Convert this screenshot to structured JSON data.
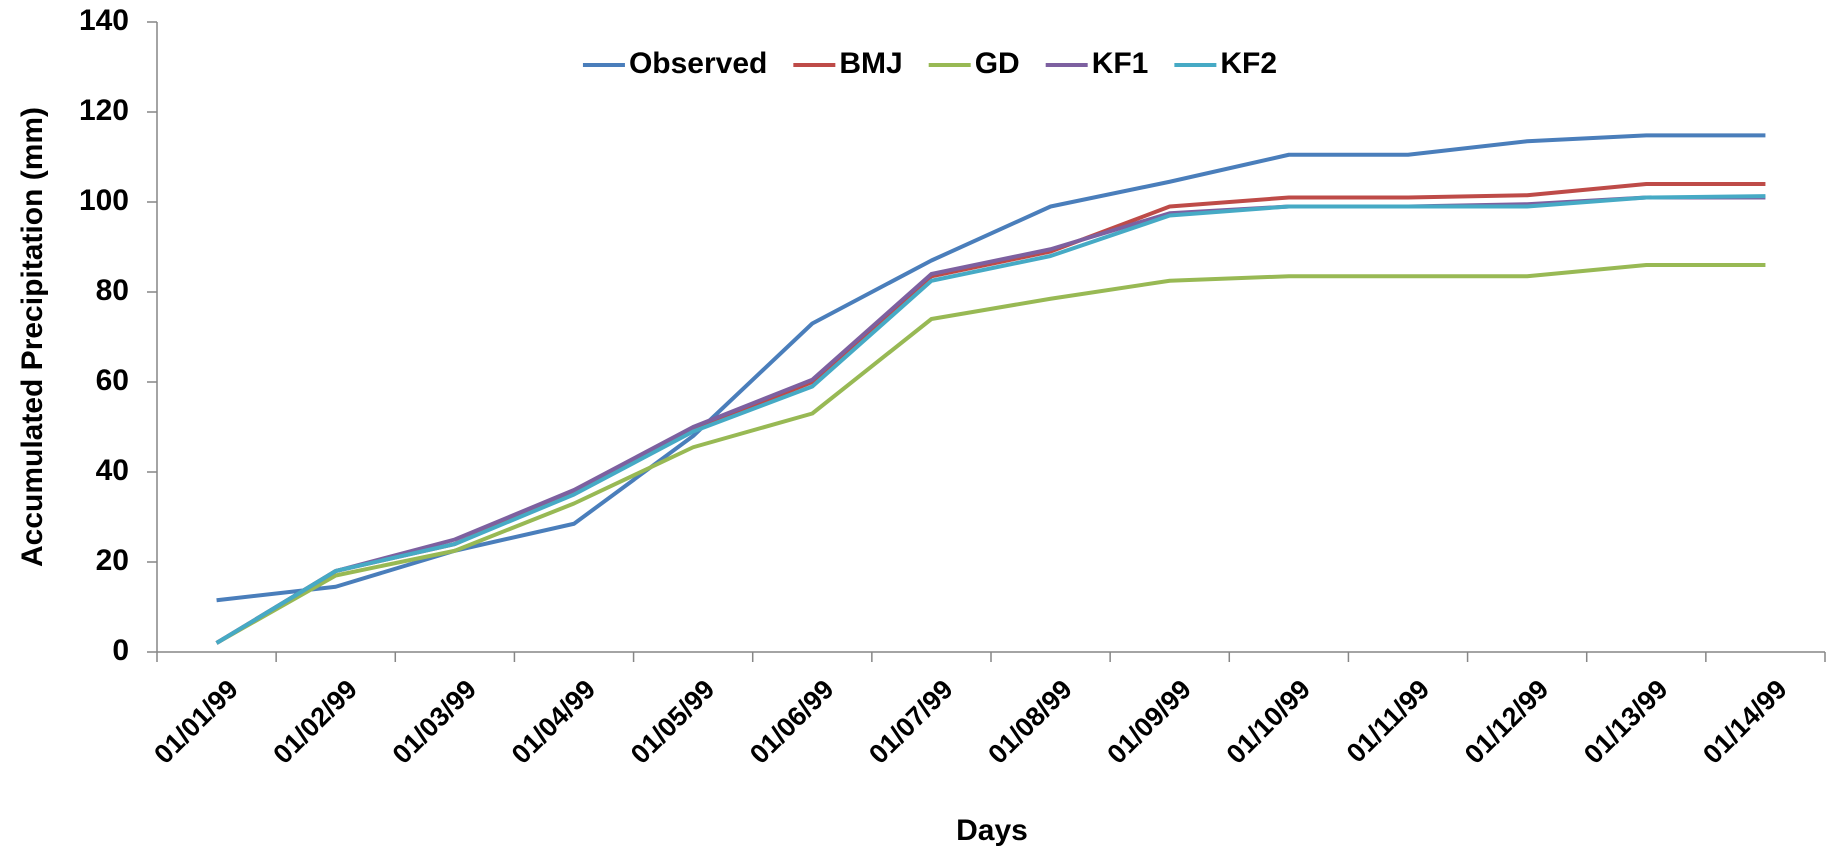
{
  "chart_data": {
    "type": "line",
    "x_label": "Days",
    "y_label": "Accumulated Precipitation (mm)",
    "categories": [
      "01/01/99",
      "01/02/99",
      "01/03/99",
      "01/04/99",
      "01/05/99",
      "01/06/99",
      "01/07/99",
      "01/08/99",
      "01/09/99",
      "01/10/99",
      "01/11/99",
      "01/12/99",
      "01/13/99",
      "01/14/99"
    ],
    "series": [
      {
        "name": "Observed",
        "color": "#4a7ebb",
        "values": [
          11.5,
          14.5,
          22.5,
          28.5,
          48,
          73,
          87,
          99,
          104.5,
          110.5,
          110.5,
          113.5,
          114.8,
          114.8
        ]
      },
      {
        "name": "BMJ",
        "color": "#be4b48",
        "values": [
          2,
          18,
          24,
          35.5,
          49.5,
          60,
          83.5,
          89,
          99,
          101,
          101,
          101.5,
          104,
          104
        ]
      },
      {
        "name": "GD",
        "color": "#98b954",
        "values": [
          2,
          17,
          22.5,
          33,
          45.5,
          53,
          74,
          78.5,
          82.5,
          83.5,
          83.5,
          83.5,
          86,
          86
        ]
      },
      {
        "name": "KF1",
        "color": "#7d60a0",
        "values": [
          2,
          18,
          25,
          36,
          50,
          60.5,
          84,
          89.5,
          97.5,
          99,
          99,
          99.5,
          101,
          101
        ]
      },
      {
        "name": "KF2",
        "color": "#46aac5",
        "values": [
          2,
          18,
          24,
          35,
          49,
          59,
          82.5,
          88,
          97,
          99,
          99,
          99,
          101,
          101.3
        ]
      }
    ],
    "ylim": [
      0,
      140
    ],
    "yticks": [
      0,
      20,
      40,
      60,
      80,
      100,
      120,
      140
    ],
    "grid": false,
    "legend": "top"
  }
}
